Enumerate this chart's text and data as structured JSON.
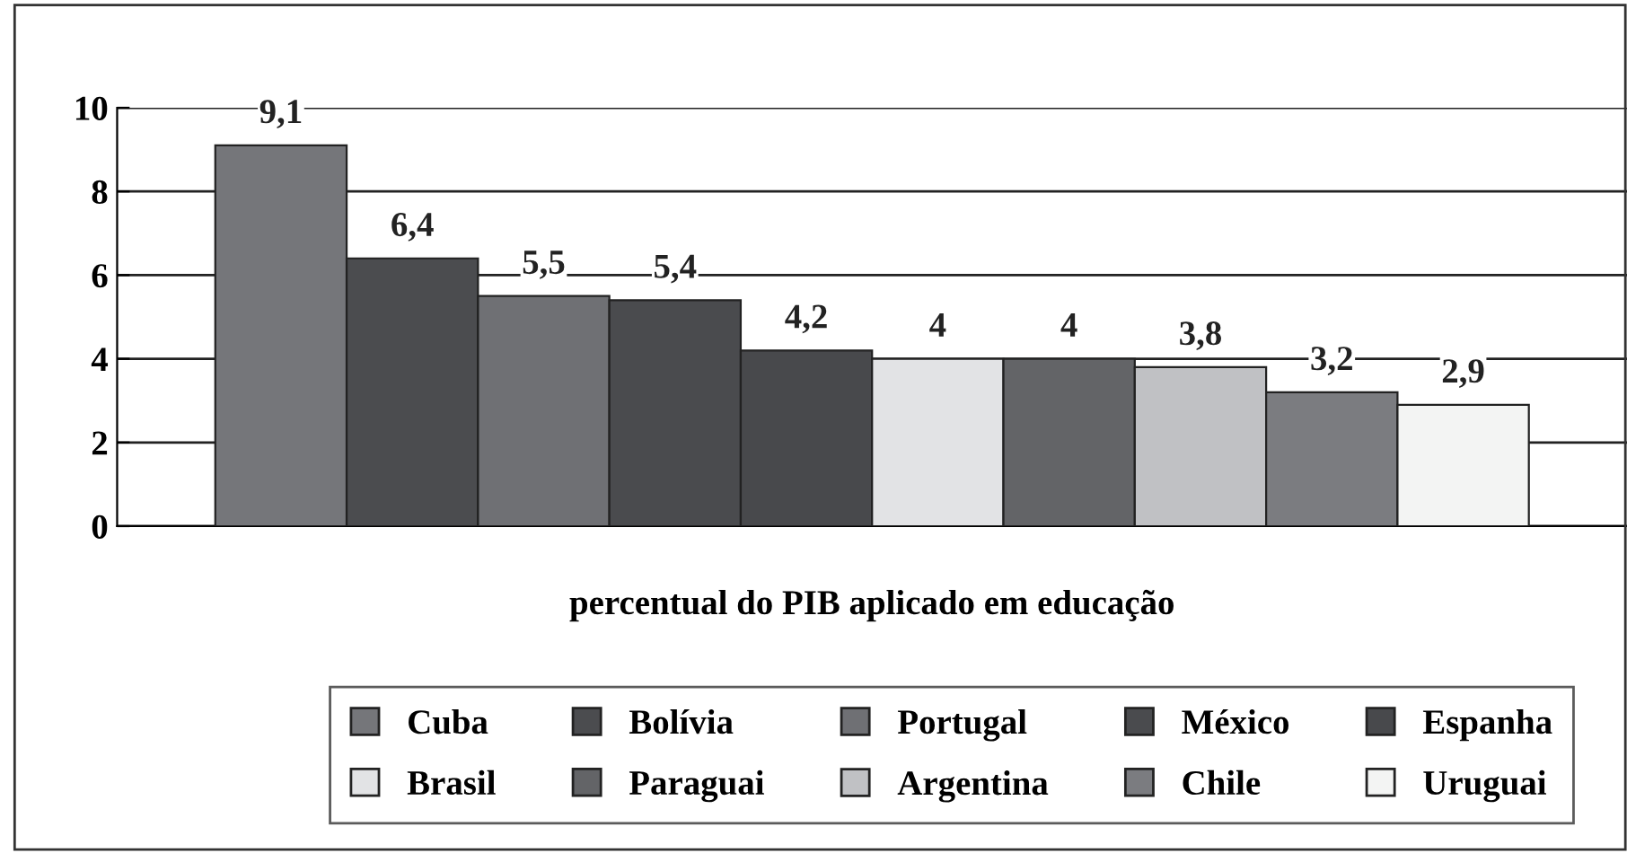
{
  "chart_data": {
    "type": "bar",
    "xlabel": "percentual do PIB aplicado em educação",
    "categories": [
      null
    ],
    "series": [
      {
        "name": "Cuba",
        "color": "#75767a",
        "values": [
          9.1
        ],
        "value_labels": [
          "9,1"
        ]
      },
      {
        "name": "Bolívia",
        "color": "#4b4c4f",
        "values": [
          6.4
        ],
        "value_labels": [
          "6,4"
        ]
      },
      {
        "name": "Portugal",
        "color": "#6f7074",
        "values": [
          5.5
        ],
        "value_labels": [
          "5,5"
        ]
      },
      {
        "name": "México",
        "color": "#4a4b4e",
        "values": [
          5.4
        ],
        "value_labels": [
          "5,4"
        ]
      },
      {
        "name": "Espanha",
        "color": "#48494c",
        "values": [
          4.2
        ],
        "value_labels": [
          "4,2"
        ]
      },
      {
        "name": "Brasil",
        "color": "#e2e3e5",
        "values": [
          4
        ],
        "value_labels": [
          "4"
        ]
      },
      {
        "name": "Paraguai",
        "color": "#636467",
        "values": [
          4
        ],
        "value_labels": [
          "4"
        ]
      },
      {
        "name": "Argentina",
        "color": "#c0c1c4",
        "values": [
          3.8
        ],
        "value_labels": [
          "3,8"
        ]
      },
      {
        "name": "Chile",
        "color": "#7b7c80",
        "values": [
          3.2
        ],
        "value_labels": [
          "3,2"
        ]
      },
      {
        "name": "Uruguai",
        "color": "#f3f4f3",
        "values": [
          2.9
        ],
        "value_labels": [
          "2,9"
        ]
      }
    ],
    "ylim": [
      0,
      10
    ],
    "yticks": [
      0,
      2,
      4,
      6,
      8,
      10
    ],
    "grid": "y",
    "legend": "bottom"
  }
}
